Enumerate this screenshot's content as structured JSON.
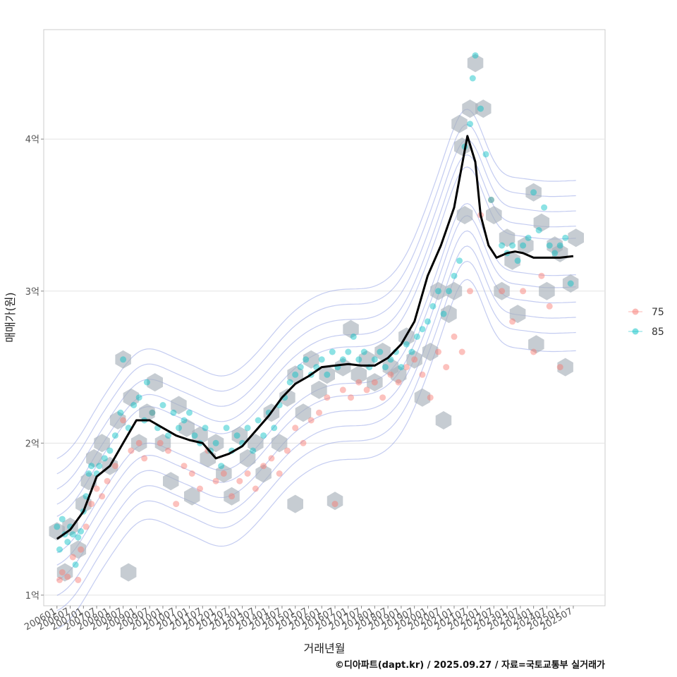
{
  "chart_data": {
    "type": "scatter",
    "caption": "©디아파트(dapt.kr) / 2025.09.27 / 자료=국토교통부 실거래가",
    "xlabel": "거래년월",
    "ylabel": "매매가(원)",
    "x_ticks": [
      "200601",
      "200607",
      "200701",
      "200707",
      "200801",
      "200807",
      "200901",
      "200907",
      "201001",
      "201007",
      "201101",
      "201107",
      "201201",
      "201207",
      "201301",
      "201307",
      "201401",
      "201407",
      "201501",
      "201507",
      "201601",
      "201607",
      "201701",
      "201707",
      "201801",
      "201807",
      "201901",
      "201907",
      "202001",
      "202007",
      "202101",
      "202107",
      "202201",
      "202207",
      "202301",
      "202307",
      "202401",
      "202407",
      "202501",
      "202507"
    ],
    "y_ticks": [
      {
        "value": 1,
        "label": "1억"
      },
      {
        "value": 2,
        "label": "2억"
      },
      {
        "value": 3,
        "label": "3억"
      },
      {
        "value": 4,
        "label": "4억"
      }
    ],
    "xlim": [
      2005.5,
      2026.7
    ],
    "ylim": [
      0.93,
      4.72
    ],
    "grid": true,
    "legend_position": "right",
    "legend": [
      {
        "name": "75",
        "color": "#F8766D"
      },
      {
        "name": "85",
        "color": "#00BFC4"
      }
    ],
    "trend_line": {
      "color": "#000000",
      "x": [
        2006.0,
        2006.5,
        2007.0,
        2007.5,
        2008.0,
        2008.5,
        2009.0,
        2009.5,
        2010.0,
        2010.5,
        2011.0,
        2011.5,
        2012.0,
        2012.5,
        2013.0,
        2013.5,
        2014.0,
        2014.5,
        2015.0,
        2015.5,
        2016.0,
        2016.5,
        2017.0,
        2017.5,
        2018.0,
        2018.5,
        2019.0,
        2019.5,
        2020.0,
        2020.5,
        2021.0,
        2021.5,
        2021.8,
        2022.0,
        2022.3,
        2022.6,
        2023.0,
        2023.3,
        2023.6,
        2024.0,
        2024.5,
        2025.0,
        2025.5
      ],
      "y": [
        1.37,
        1.43,
        1.55,
        1.78,
        1.85,
        2.0,
        2.15,
        2.15,
        2.1,
        2.05,
        2.02,
        2.0,
        1.9,
        1.93,
        1.98,
        2.08,
        2.18,
        2.3,
        2.39,
        2.44,
        2.5,
        2.51,
        2.52,
        2.51,
        2.51,
        2.56,
        2.65,
        2.8,
        3.1,
        3.3,
        3.55,
        4.02,
        3.85,
        3.5,
        3.3,
        3.22,
        3.25,
        3.26,
        3.25,
        3.22,
        3.22,
        3.22,
        3.23
      ]
    },
    "series": [
      {
        "name": "75",
        "color": "#F8766D",
        "points": [
          [
            2006.1,
            1.1
          ],
          [
            2006.2,
            1.15
          ],
          [
            2006.4,
            1.12
          ],
          [
            2006.6,
            1.25
          ],
          [
            2006.8,
            1.1
          ],
          [
            2006.9,
            1.3
          ],
          [
            2007.1,
            1.45
          ],
          [
            2007.3,
            1.6
          ],
          [
            2007.5,
            1.7
          ],
          [
            2007.7,
            1.65
          ],
          [
            2007.9,
            1.75
          ],
          [
            2008.2,
            1.85
          ],
          [
            2008.5,
            2.15
          ],
          [
            2008.8,
            1.95
          ],
          [
            2009.1,
            2.0
          ],
          [
            2009.3,
            1.9
          ],
          [
            2009.6,
            2.2
          ],
          [
            2009.9,
            2.0
          ],
          [
            2010.2,
            1.95
          ],
          [
            2010.5,
            1.6
          ],
          [
            2010.8,
            1.85
          ],
          [
            2011.1,
            1.8
          ],
          [
            2011.4,
            1.7
          ],
          [
            2011.7,
            1.95
          ],
          [
            2012.0,
            1.75
          ],
          [
            2012.3,
            1.8
          ],
          [
            2012.6,
            1.65
          ],
          [
            2012.9,
            1.75
          ],
          [
            2013.2,
            1.8
          ],
          [
            2013.5,
            1.7
          ],
          [
            2013.8,
            1.85
          ],
          [
            2014.1,
            1.9
          ],
          [
            2014.4,
            1.8
          ],
          [
            2014.7,
            1.95
          ],
          [
            2015.0,
            2.1
          ],
          [
            2015.3,
            2.0
          ],
          [
            2015.6,
            2.15
          ],
          [
            2015.9,
            2.2
          ],
          [
            2016.2,
            2.3
          ],
          [
            2016.5,
            1.6
          ],
          [
            2016.8,
            2.35
          ],
          [
            2017.1,
            2.3
          ],
          [
            2017.4,
            2.4
          ],
          [
            2017.7,
            2.35
          ],
          [
            2018.0,
            2.4
          ],
          [
            2018.3,
            2.3
          ],
          [
            2018.6,
            2.45
          ],
          [
            2018.9,
            2.4
          ],
          [
            2019.2,
            2.5
          ],
          [
            2019.5,
            2.55
          ],
          [
            2019.8,
            2.45
          ],
          [
            2020.1,
            2.3
          ],
          [
            2020.4,
            2.6
          ],
          [
            2020.7,
            2.5
          ],
          [
            2021.0,
            2.7
          ],
          [
            2021.3,
            2.6
          ],
          [
            2021.6,
            3.0
          ],
          [
            2022.0,
            3.5
          ],
          [
            2022.4,
            3.6
          ],
          [
            2022.8,
            3.0
          ],
          [
            2023.2,
            2.8
          ],
          [
            2023.6,
            3.0
          ],
          [
            2024.0,
            2.6
          ],
          [
            2024.3,
            3.1
          ],
          [
            2024.6,
            2.9
          ],
          [
            2025.0,
            2.5
          ]
        ]
      },
      {
        "name": "85",
        "color": "#00BFC4",
        "points": [
          [
            2006.0,
            1.45
          ],
          [
            2006.1,
            1.3
          ],
          [
            2006.2,
            1.5
          ],
          [
            2006.3,
            1.4
          ],
          [
            2006.4,
            1.35
          ],
          [
            2006.5,
            1.45
          ],
          [
            2006.6,
            1.4
          ],
          [
            2006.7,
            1.2
          ],
          [
            2006.8,
            1.38
          ],
          [
            2006.9,
            1.42
          ],
          [
            2007.0,
            1.55
          ],
          [
            2007.1,
            1.65
          ],
          [
            2007.2,
            1.8
          ],
          [
            2007.3,
            1.85
          ],
          [
            2007.5,
            1.8
          ],
          [
            2007.6,
            1.85
          ],
          [
            2007.8,
            1.9
          ],
          [
            2008.0,
            1.95
          ],
          [
            2008.2,
            2.05
          ],
          [
            2008.4,
            2.2
          ],
          [
            2008.5,
            2.55
          ],
          [
            2008.7,
            2.1
          ],
          [
            2008.9,
            2.25
          ],
          [
            2009.1,
            2.3
          ],
          [
            2009.3,
            2.15
          ],
          [
            2009.4,
            2.4
          ],
          [
            2009.6,
            2.2
          ],
          [
            2009.8,
            2.1
          ],
          [
            2010.0,
            2.25
          ],
          [
            2010.2,
            2.05
          ],
          [
            2010.4,
            2.2
          ],
          [
            2010.6,
            2.1
          ],
          [
            2010.8,
            2.15
          ],
          [
            2011.0,
            2.2
          ],
          [
            2011.2,
            2.05
          ],
          [
            2011.4,
            2.0
          ],
          [
            2011.6,
            2.1
          ],
          [
            2011.8,
            1.95
          ],
          [
            2012.0,
            2.0
          ],
          [
            2012.2,
            1.85
          ],
          [
            2012.4,
            2.1
          ],
          [
            2012.6,
            1.95
          ],
          [
            2012.8,
            2.05
          ],
          [
            2013.0,
            2.0
          ],
          [
            2013.2,
            2.1
          ],
          [
            2013.4,
            1.95
          ],
          [
            2013.6,
            2.15
          ],
          [
            2013.8,
            2.05
          ],
          [
            2014.0,
            2.2
          ],
          [
            2014.2,
            2.1
          ],
          [
            2014.4,
            2.25
          ],
          [
            2014.6,
            2.3
          ],
          [
            2014.8,
            2.4
          ],
          [
            2015.0,
            2.45
          ],
          [
            2015.2,
            2.5
          ],
          [
            2015.4,
            2.55
          ],
          [
            2015.6,
            2.45
          ],
          [
            2015.8,
            2.5
          ],
          [
            2016.0,
            2.55
          ],
          [
            2016.2,
            2.45
          ],
          [
            2016.4,
            2.6
          ],
          [
            2016.6,
            2.5
          ],
          [
            2016.8,
            2.55
          ],
          [
            2017.0,
            2.6
          ],
          [
            2017.2,
            2.7
          ],
          [
            2017.4,
            2.55
          ],
          [
            2017.6,
            2.6
          ],
          [
            2017.8,
            2.5
          ],
          [
            2018.0,
            2.55
          ],
          [
            2018.2,
            2.6
          ],
          [
            2018.4,
            2.5
          ],
          [
            2018.6,
            2.55
          ],
          [
            2018.8,
            2.6
          ],
          [
            2019.0,
            2.5
          ],
          [
            2019.2,
            2.65
          ],
          [
            2019.4,
            2.6
          ],
          [
            2019.6,
            2.7
          ],
          [
            2019.8,
            2.75
          ],
          [
            2020.0,
            2.8
          ],
          [
            2020.2,
            2.9
          ],
          [
            2020.4,
            3.0
          ],
          [
            2020.6,
            2.85
          ],
          [
            2020.8,
            3.0
          ],
          [
            2021.0,
            3.1
          ],
          [
            2021.2,
            3.2
          ],
          [
            2021.4,
            3.95
          ],
          [
            2021.6,
            4.1
          ],
          [
            2021.7,
            4.4
          ],
          [
            2021.8,
            4.55
          ],
          [
            2022.0,
            4.2
          ],
          [
            2022.2,
            3.9
          ],
          [
            2022.4,
            3.6
          ],
          [
            2022.8,
            3.3
          ],
          [
            2023.0,
            3.25
          ],
          [
            2023.2,
            3.3
          ],
          [
            2023.4,
            3.2
          ],
          [
            2023.6,
            3.3
          ],
          [
            2023.8,
            3.35
          ],
          [
            2024.0,
            3.65
          ],
          [
            2024.2,
            3.4
          ],
          [
            2024.4,
            3.55
          ],
          [
            2024.6,
            3.3
          ],
          [
            2024.8,
            3.25
          ],
          [
            2025.0,
            3.3
          ],
          [
            2025.2,
            3.35
          ],
          [
            2025.4,
            3.05
          ]
        ]
      }
    ],
    "hexbins": [
      [
        2006.0,
        1.42
      ],
      [
        2006.3,
        1.15
      ],
      [
        2006.5,
        1.45
      ],
      [
        2006.8,
        1.3
      ],
      [
        2007.0,
        1.6
      ],
      [
        2007.2,
        1.75
      ],
      [
        2007.4,
        1.9
      ],
      [
        2007.7,
        2.0
      ],
      [
        2008.0,
        1.85
      ],
      [
        2008.3,
        2.15
      ],
      [
        2008.5,
        2.55
      ],
      [
        2008.7,
        1.15
      ],
      [
        2008.8,
        2.3
      ],
      [
        2009.1,
        2.0
      ],
      [
        2009.4,
        2.2
      ],
      [
        2009.7,
        2.4
      ],
      [
        2010.0,
        2.0
      ],
      [
        2010.3,
        1.75
      ],
      [
        2010.6,
        2.25
      ],
      [
        2010.9,
        2.1
      ],
      [
        2011.1,
        1.65
      ],
      [
        2011.4,
        2.05
      ],
      [
        2011.7,
        1.9
      ],
      [
        2012.0,
        2.0
      ],
      [
        2012.3,
        1.8
      ],
      [
        2012.6,
        1.65
      ],
      [
        2012.9,
        2.05
      ],
      [
        2013.2,
        1.9
      ],
      [
        2013.5,
        2.0
      ],
      [
        2013.8,
        1.8
      ],
      [
        2014.1,
        2.2
      ],
      [
        2014.4,
        2.0
      ],
      [
        2014.7,
        2.3
      ],
      [
        2015.0,
        1.6
      ],
      [
        2015.0,
        2.45
      ],
      [
        2015.3,
        2.2
      ],
      [
        2015.6,
        2.55
      ],
      [
        2015.9,
        2.35
      ],
      [
        2016.2,
        2.45
      ],
      [
        2016.5,
        1.62
      ],
      [
        2016.8,
        2.5
      ],
      [
        2017.1,
        2.75
      ],
      [
        2017.4,
        2.45
      ],
      [
        2017.7,
        2.55
      ],
      [
        2018.0,
        2.4
      ],
      [
        2018.3,
        2.6
      ],
      [
        2018.6,
        2.5
      ],
      [
        2018.9,
        2.45
      ],
      [
        2019.2,
        2.7
      ],
      [
        2019.5,
        2.55
      ],
      [
        2019.8,
        2.3
      ],
      [
        2020.1,
        2.6
      ],
      [
        2020.4,
        3.0
      ],
      [
        2020.6,
        2.15
      ],
      [
        2020.8,
        2.85
      ],
      [
        2021.0,
        3.0
      ],
      [
        2021.2,
        4.1
      ],
      [
        2021.3,
        3.95
      ],
      [
        2021.4,
        3.5
      ],
      [
        2021.6,
        4.2
      ],
      [
        2021.8,
        4.5
      ],
      [
        2022.1,
        4.2
      ],
      [
        2022.5,
        3.5
      ],
      [
        2022.8,
        3.0
      ],
      [
        2023.0,
        3.35
      ],
      [
        2023.2,
        3.2
      ],
      [
        2023.4,
        2.85
      ],
      [
        2023.7,
        3.3
      ],
      [
        2024.0,
        3.65
      ],
      [
        2024.1,
        2.65
      ],
      [
        2024.3,
        3.45
      ],
      [
        2024.5,
        3.0
      ],
      [
        2024.8,
        3.3
      ],
      [
        2025.0,
        3.25
      ],
      [
        2025.2,
        2.5
      ],
      [
        2025.4,
        3.05
      ],
      [
        2025.6,
        3.35
      ]
    ]
  }
}
